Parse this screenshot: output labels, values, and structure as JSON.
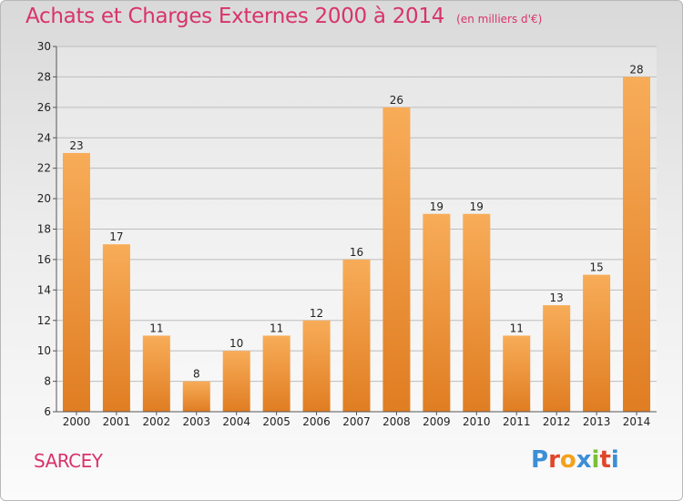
{
  "header": {
    "title": "Achats et Charges Externes 2000 à 2014",
    "unit": "(en milliers d'€)"
  },
  "footer": {
    "city": "SARCEY",
    "logo_letters": [
      "P",
      "r",
      "o",
      "x",
      "i",
      "t",
      "i"
    ],
    "logo_colors": [
      "#3b8fd6",
      "#e0462b",
      "#f2a21b",
      "#3b8fd6",
      "#7abf3a",
      "#e0462b",
      "#3b8fd6"
    ]
  },
  "colors": {
    "title": "#d8336a",
    "bar_light": "#f8ac58",
    "bar_dark": "#e07d22",
    "grid": "#bdbdbd"
  },
  "chart_data": {
    "type": "bar",
    "categories": [
      "2000",
      "2001",
      "2002",
      "2003",
      "2004",
      "2005",
      "2006",
      "2007",
      "2008",
      "2009",
      "2010",
      "2011",
      "2012",
      "2013",
      "2014"
    ],
    "values": [
      23,
      17,
      11,
      8,
      10,
      11,
      12,
      16,
      26,
      19,
      19,
      11,
      13,
      15,
      28
    ],
    "ylim": [
      6,
      30
    ],
    "yticks": [
      6,
      8,
      10,
      12,
      14,
      16,
      18,
      20,
      22,
      24,
      26,
      28,
      30
    ],
    "grid": true,
    "xlabel": "",
    "ylabel": ""
  }
}
